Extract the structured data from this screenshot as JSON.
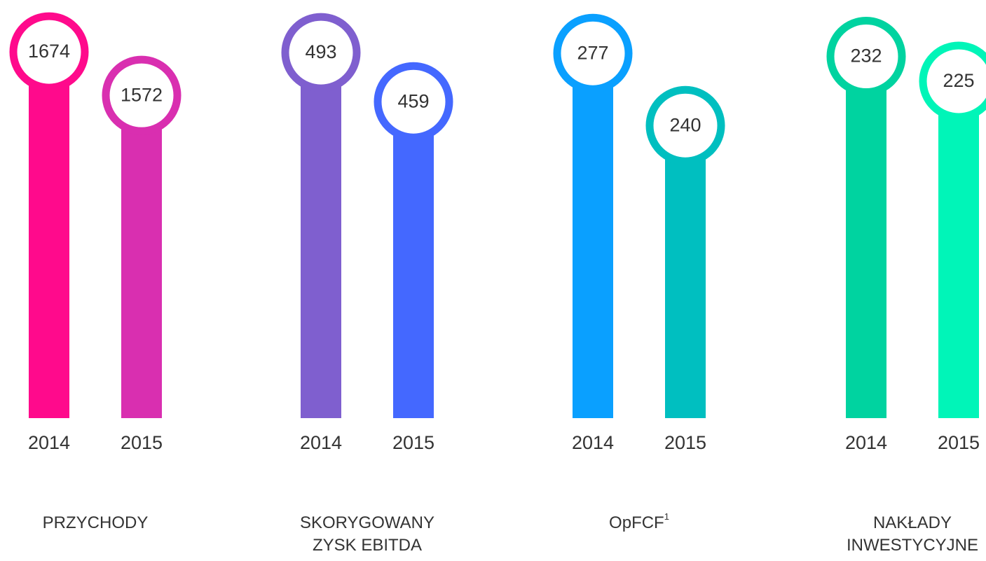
{
  "chart_data": [
    {
      "type": "bar",
      "title_lines": [
        "PRZYCHODY"
      ],
      "categories": [
        "2014",
        "2015"
      ],
      "values": [
        1674,
        1572
      ],
      "colors": [
        "#ff0a8c",
        "#d92fb0"
      ],
      "ylim": [
        815,
        1730
      ]
    },
    {
      "type": "bar",
      "title_lines": [
        "SKORYGOWANY",
        "ZYSK EBITDA"
      ],
      "categories": [
        "2014",
        "2015"
      ],
      "values": [
        493,
        459
      ],
      "colors": [
        "#7f5fcf",
        "#4468ff"
      ],
      "ylim": [
        240,
        510
      ]
    },
    {
      "type": "bar",
      "title_lines": [
        "OpFCF"
      ],
      "title_superscript": "1",
      "categories": [
        "2014",
        "2015"
      ],
      "values": [
        277,
        240
      ],
      "colors": [
        "#0aa0ff",
        "#00bfc0"
      ],
      "ylim": [
        90,
        290
      ]
    },
    {
      "type": "bar",
      "title_lines": [
        "NAKŁADY",
        "INWESTYCYJNE"
      ],
      "categories": [
        "2014",
        "2015"
      ],
      "values": [
        232,
        225
      ],
      "colors": [
        "#00d3a0",
        "#00f5b8"
      ],
      "ylim": [
        130,
        240
      ]
    }
  ]
}
